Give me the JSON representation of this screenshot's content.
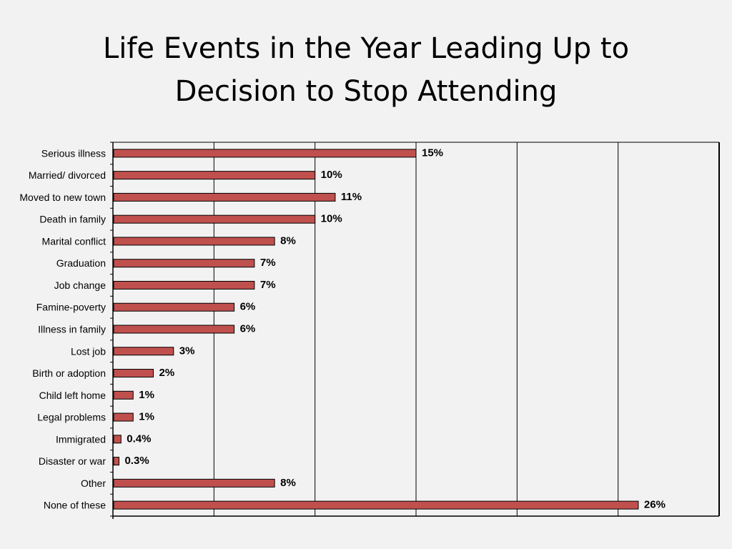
{
  "title": {
    "line1": "Life Events in the Year Leading Up to",
    "line2": "Decision to Stop Attending"
  },
  "colors": {
    "bar_fill": "#c0504d",
    "bar_stroke": "#000000",
    "gridline": "#000000",
    "background": "#f2f2f2"
  },
  "chart_data": {
    "type": "bar",
    "orientation": "horizontal",
    "title": "Life Events in the Year Leading Up to Decision to Stop Attending",
    "xlabel": "",
    "ylabel": "",
    "xlim": [
      0,
      30
    ],
    "grid": "vertical",
    "legend": "none",
    "categories": [
      "Serious illness",
      "Married/ divorced",
      "Moved to new town",
      "Death in family",
      "Marital conflict",
      "Graduation",
      "Job change",
      "Famine-poverty",
      "Illness in family",
      "Lost job",
      "Birth or adoption",
      "Child left home",
      "Legal problems",
      "Immigrated",
      "Disaster or war",
      "Other",
      "None of these"
    ],
    "values": [
      15,
      10,
      11,
      10,
      8,
      7,
      7,
      6,
      6,
      3,
      2,
      1,
      1,
      0.4,
      0.3,
      8,
      26
    ],
    "labels": [
      "15%",
      "10%",
      "11%",
      "10%",
      "8%",
      "7%",
      "7%",
      "6%",
      "6%",
      "3%",
      "2%",
      "1%",
      "1%",
      "0.4%",
      "0.3%",
      "8%",
      "26%"
    ]
  }
}
